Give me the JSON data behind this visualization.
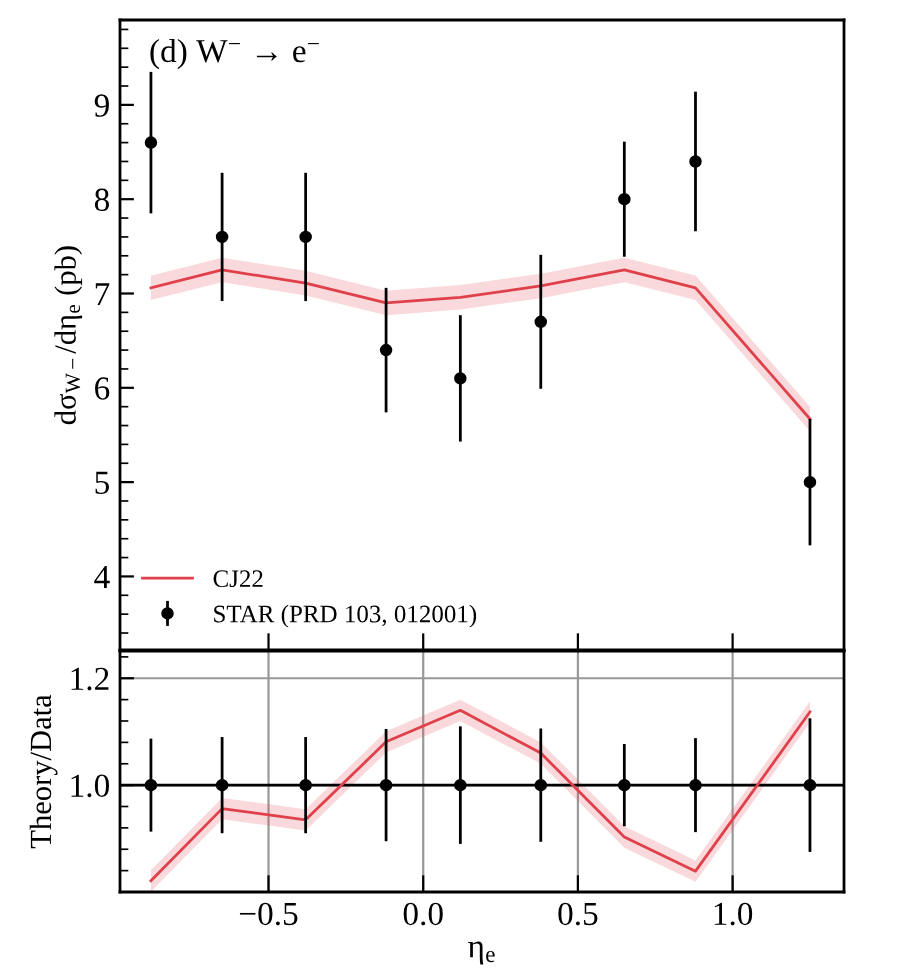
{
  "chart_data": [
    {
      "type": "line",
      "ylabel": "dσ$_{W−}$/dη$_{e}$ (pb)",
      "annotations": [
        "(d) W$^{−}$ → e$^{−}$"
      ],
      "x": [
        -0.88,
        -0.65,
        -0.38,
        -0.12,
        0.12,
        0.38,
        0.65,
        0.88,
        1.25
      ],
      "xlim": [
        -0.98,
        1.36
      ],
      "xticks": [
        {
          "value": -0.5,
          "label": null
        },
        {
          "value": 0.0,
          "label": null
        },
        {
          "value": 0.5,
          "label": null
        },
        {
          "value": 1.0,
          "label": null
        }
      ],
      "ylim": [
        3.22,
        9.9
      ],
      "yticks": [
        4,
        5,
        6,
        7,
        8,
        9
      ],
      "tick_labels": "y",
      "legend": "bottom left",
      "grid": false,
      "series": [
        {
          "name": "CJ22",
          "type": "line",
          "color": "#e0404a",
          "values": [
            7.06,
            7.25,
            7.11,
            6.9,
            6.96,
            7.08,
            7.25,
            7.06,
            5.67
          ],
          "lower": [
            6.93,
            7.12,
            6.98,
            6.77,
            6.83,
            6.95,
            7.12,
            6.93,
            5.54
          ],
          "upper": [
            7.19,
            7.38,
            7.24,
            7.03,
            7.09,
            7.21,
            7.38,
            7.19,
            5.8
          ]
        },
        {
          "name": "STAR (PRD 103, 012001)",
          "type": "scatter",
          "marker": "circle",
          "color": "#000000",
          "values": [
            8.6,
            7.6,
            7.6,
            6.4,
            6.1,
            6.7,
            8.0,
            8.4,
            5.0
          ],
          "errors": [
            0.75,
            0.68,
            0.68,
            0.66,
            0.67,
            0.71,
            0.61,
            0.74,
            0.67
          ]
        }
      ]
    },
    {
      "type": "line",
      "xlabel": "η$_{e}$",
      "ylabel": "Theory/Data",
      "x": [
        -0.88,
        -0.65,
        -0.38,
        -0.12,
        0.12,
        0.38,
        0.65,
        0.88,
        1.25
      ],
      "xlim": [
        -0.98,
        1.36
      ],
      "xticks": [
        {
          "value": -0.5,
          "label": "−0.5"
        },
        {
          "value": 0.0,
          "label": "0.0"
        },
        {
          "value": 0.5,
          "label": "0.5"
        },
        {
          "value": 1.0,
          "label": "1.0"
        }
      ],
      "ylim": [
        0.8,
        1.251
      ],
      "yticks": [
        {
          "value": 1.0,
          "label": "1.0"
        },
        {
          "value": 1.2,
          "label": "1.2"
        }
      ],
      "grid": true,
      "ref_lines": [
        {
          "axis": "y",
          "value": 1.0,
          "color": "#000000"
        }
      ],
      "series": [
        {
          "type": "line",
          "color": "#e0404a",
          "values": [
            0.821,
            0.956,
            0.935,
            1.081,
            1.14,
            1.06,
            0.903,
            0.839,
            1.137
          ],
          "lower": [
            0.801,
            0.936,
            0.915,
            1.061,
            1.12,
            1.04,
            0.883,
            0.819,
            1.117
          ],
          "upper": [
            0.841,
            0.976,
            0.955,
            1.101,
            1.16,
            1.08,
            0.923,
            0.859,
            1.157
          ]
        },
        {
          "type": "scatter",
          "marker": "circle",
          "color": "#000000",
          "values": [
            1.0,
            1.0,
            1.0,
            1.0,
            1.0,
            1.0,
            1.0,
            1.0,
            1.0
          ],
          "errors": [
            0.087,
            0.09,
            0.09,
            0.105,
            0.11,
            0.106,
            0.077,
            0.088,
            0.125
          ]
        }
      ]
    }
  ]
}
